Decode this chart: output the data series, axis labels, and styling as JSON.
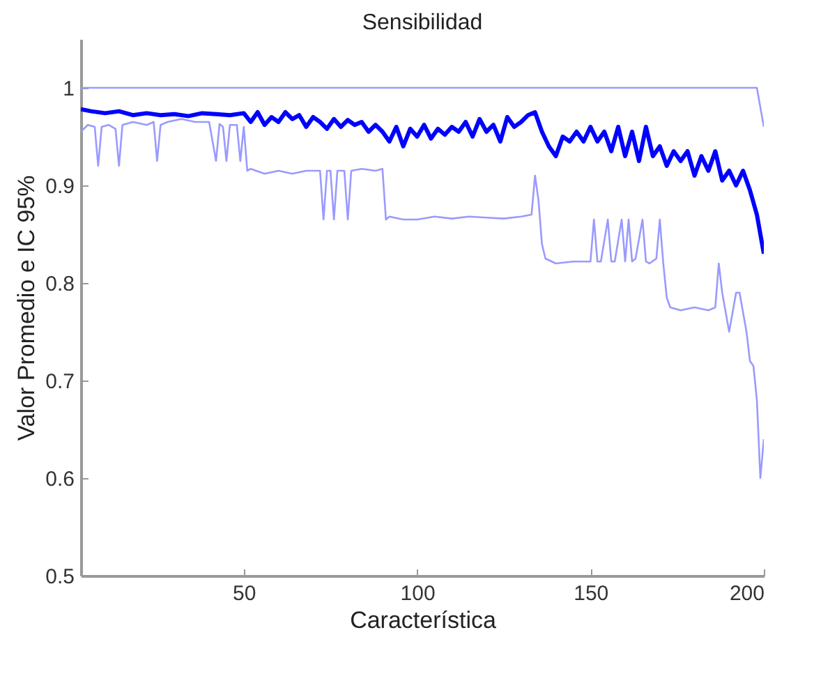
{
  "chart_data": {
    "type": "line",
    "title": "Sensibilidad",
    "xlabel": "Característica",
    "ylabel": "Valor Promedio e IC 95%",
    "xlim": [
      3,
      200
    ],
    "ylim": [
      0.5,
      1.05
    ],
    "xticks": [
      50,
      100,
      150,
      200
    ],
    "yticks": [
      0.5,
      0.6,
      0.7,
      0.8,
      0.9,
      1
    ],
    "grid": false,
    "series": [
      {
        "color": "#9a9aff",
        "x": [
          3,
          198,
          200
        ],
        "values": [
          1,
          1,
          0.96
        ]
      },
      {
        "color": "#9a9aff",
        "x": [
          3,
          5,
          7,
          8,
          9,
          11,
          13,
          14,
          15,
          18,
          22,
          24,
          25,
          26,
          28,
          32,
          36,
          40,
          42,
          43,
          44,
          45,
          46,
          48,
          49,
          50,
          51,
          52,
          56,
          60,
          64,
          68,
          70,
          72,
          73,
          74,
          75,
          76,
          77,
          79,
          80,
          81,
          84,
          88,
          90,
          91,
          92,
          96,
          100,
          105,
          110,
          115,
          120,
          125,
          130,
          133,
          134,
          135,
          136,
          137,
          140,
          145,
          150,
          151,
          152,
          153,
          155,
          156,
          157,
          159,
          160,
          161,
          162,
          163,
          165,
          166,
          167,
          169,
          170,
          171,
          172,
          173,
          176,
          180,
          184,
          186,
          187,
          188,
          190,
          192,
          193,
          194,
          195,
          196,
          197,
          198,
          199,
          200
        ],
        "values": [
          0.955,
          0.962,
          0.96,
          0.92,
          0.96,
          0.962,
          0.958,
          0.92,
          0.962,
          0.965,
          0.962,
          0.965,
          0.925,
          0.962,
          0.965,
          0.968,
          0.965,
          0.965,
          0.925,
          0.963,
          0.96,
          0.925,
          0.962,
          0.962,
          0.925,
          0.96,
          0.915,
          0.917,
          0.912,
          0.915,
          0.912,
          0.915,
          0.915,
          0.915,
          0.865,
          0.915,
          0.915,
          0.865,
          0.915,
          0.915,
          0.865,
          0.915,
          0.917,
          0.915,
          0.917,
          0.865,
          0.868,
          0.865,
          0.865,
          0.868,
          0.866,
          0.868,
          0.867,
          0.866,
          0.868,
          0.87,
          0.91,
          0.885,
          0.84,
          0.825,
          0.82,
          0.822,
          0.822,
          0.865,
          0.822,
          0.822,
          0.865,
          0.822,
          0.822,
          0.865,
          0.822,
          0.865,
          0.822,
          0.825,
          0.865,
          0.822,
          0.82,
          0.825,
          0.865,
          0.82,
          0.785,
          0.775,
          0.772,
          0.775,
          0.772,
          0.775,
          0.82,
          0.79,
          0.75,
          0.79,
          0.79,
          0.77,
          0.75,
          0.72,
          0.715,
          0.68,
          0.6,
          0.64
        ]
      },
      {
        "color": "#0000ff",
        "x": [
          3,
          6,
          10,
          14,
          18,
          22,
          26,
          30,
          34,
          38,
          42,
          46,
          50,
          52,
          54,
          56,
          58,
          60,
          62,
          64,
          66,
          68,
          70,
          72,
          74,
          76,
          78,
          80,
          82,
          84,
          86,
          88,
          90,
          92,
          94,
          96,
          98,
          100,
          102,
          104,
          106,
          108,
          110,
          112,
          114,
          116,
          118,
          120,
          122,
          124,
          126,
          128,
          130,
          132,
          134,
          136,
          138,
          140,
          142,
          144,
          146,
          148,
          150,
          152,
          154,
          156,
          158,
          160,
          162,
          164,
          166,
          168,
          170,
          172,
          174,
          176,
          178,
          180,
          182,
          184,
          186,
          188,
          190,
          192,
          194,
          196,
          198,
          200
        ],
        "values": [
          0.978,
          0.976,
          0.974,
          0.976,
          0.972,
          0.974,
          0.972,
          0.973,
          0.971,
          0.974,
          0.973,
          0.972,
          0.974,
          0.965,
          0.975,
          0.962,
          0.97,
          0.965,
          0.975,
          0.968,
          0.972,
          0.96,
          0.97,
          0.965,
          0.958,
          0.968,
          0.96,
          0.967,
          0.962,
          0.965,
          0.955,
          0.962,
          0.955,
          0.945,
          0.96,
          0.94,
          0.958,
          0.95,
          0.962,
          0.948,
          0.958,
          0.952,
          0.96,
          0.955,
          0.965,
          0.95,
          0.968,
          0.955,
          0.962,
          0.945,
          0.97,
          0.96,
          0.965,
          0.972,
          0.975,
          0.955,
          0.94,
          0.93,
          0.95,
          0.945,
          0.955,
          0.945,
          0.96,
          0.945,
          0.955,
          0.935,
          0.96,
          0.93,
          0.955,
          0.925,
          0.96,
          0.93,
          0.94,
          0.92,
          0.935,
          0.925,
          0.935,
          0.91,
          0.93,
          0.915,
          0.935,
          0.905,
          0.915,
          0.9,
          0.915,
          0.895,
          0.87,
          0.83
        ]
      }
    ]
  }
}
